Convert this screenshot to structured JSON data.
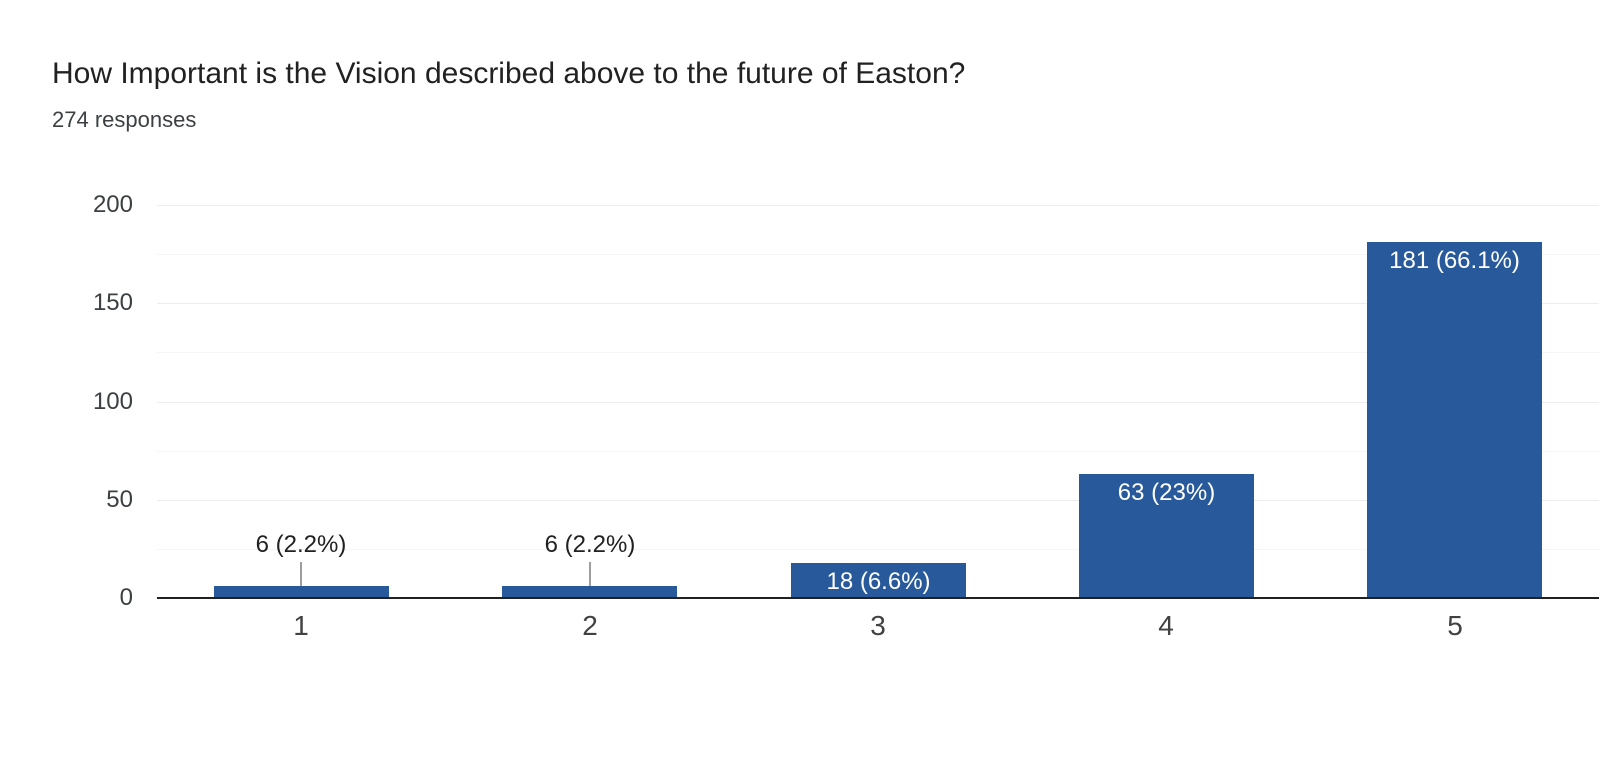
{
  "header": {
    "title": "How Important is the Vision described above to the future of Easton?",
    "subtitle": "274 responses"
  },
  "chart_data": {
    "type": "bar",
    "title": "How Important is the Vision described above to the future of Easton?",
    "subtitle": "274 responses",
    "categories": [
      "1",
      "2",
      "3",
      "4",
      "5"
    ],
    "values": [
      6,
      6,
      18,
      63,
      181
    ],
    "bar_labels": [
      "6 (2.2%)",
      "6 (2.2%)",
      "18 (6.6%)",
      "63 (23%)",
      "181 (66.1%)"
    ],
    "bar_label_placement": [
      "outside",
      "outside",
      "inside",
      "inside",
      "inside"
    ],
    "xlabel": "",
    "ylabel": "",
    "ylim": [
      0,
      200
    ],
    "yticks": [
      0,
      50,
      100,
      150,
      200
    ],
    "minor_gridline_step": 25,
    "grid": true,
    "legend_position": "none",
    "colors": {
      "bar": "#27599b",
      "inside_label": "#ffffff",
      "outside_label": "#212121",
      "leader_line": "#9e9e9e",
      "major_gridline": "#ededed",
      "minor_gridline": "#f5f5f5",
      "baseline": "#212121",
      "y_axis_label": "#3c4043",
      "x_axis_label": "#424242",
      "title": "#212121",
      "subtitle": "#3c4043"
    }
  }
}
